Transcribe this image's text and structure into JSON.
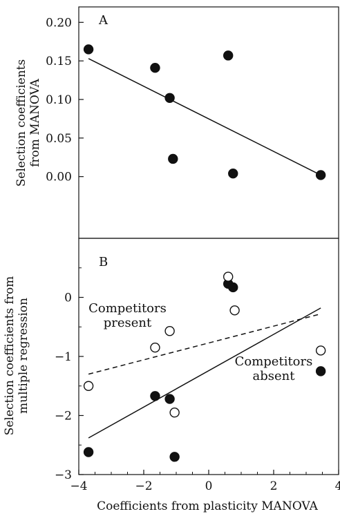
{
  "chart_data": [
    {
      "type": "scatter",
      "panel_label": "A",
      "ylabel_line1": "Selection coefficients",
      "ylabel_line2": "from MANOVA",
      "xlim": [
        -4,
        4
      ],
      "ylim": [
        -0.08,
        0.22
      ],
      "y_ticks": [
        0.0,
        0.05,
        0.1,
        0.15,
        0.2
      ],
      "y_tick_labels": [
        "0.00",
        "0.05",
        "0.10",
        "0.15",
        "0.20"
      ],
      "series": [
        {
          "marker": "filled-circle",
          "points": [
            {
              "x": -3.7,
              "y": 0.165
            },
            {
              "x": -1.65,
              "y": 0.141
            },
            {
              "x": -1.2,
              "y": 0.102
            },
            {
              "x": -1.1,
              "y": 0.023
            },
            {
              "x": 0.6,
              "y": 0.157
            },
            {
              "x": 0.75,
              "y": 0.004
            },
            {
              "x": 3.45,
              "y": 0.002
            }
          ]
        }
      ],
      "fit_lines": [
        {
          "style": "solid",
          "x": [
            -3.7,
            3.45
          ],
          "y": [
            0.153,
            0.002
          ]
        }
      ]
    },
    {
      "type": "scatter",
      "panel_label": "B",
      "ylabel_line1": "Selection coefficients from",
      "ylabel_line2": "multiple regression",
      "xlabel": "Coefficients from plasticity MANOVA",
      "xlim": [
        -4,
        4
      ],
      "ylim": [
        -3,
        1
      ],
      "x_ticks": [
        -4,
        -2,
        0,
        2,
        4
      ],
      "x_tick_labels": [
        "−4",
        "−2",
        "0",
        "2",
        "4"
      ],
      "y_ticks": [
        -3,
        -2,
        -1,
        0
      ],
      "y_tick_labels": [
        "−3",
        "−2",
        "−1",
        "0"
      ],
      "series": [
        {
          "marker": "filled-circle",
          "points": [
            {
              "x": -3.7,
              "y": -2.62
            },
            {
              "x": -1.65,
              "y": -1.67
            },
            {
              "x": -1.2,
              "y": -1.72
            },
            {
              "x": -1.05,
              "y": -2.7
            },
            {
              "x": 0.6,
              "y": 0.23
            },
            {
              "x": 0.75,
              "y": 0.17
            },
            {
              "x": 3.45,
              "y": -1.25
            }
          ]
        },
        {
          "marker": "open-circle",
          "points": [
            {
              "x": -3.7,
              "y": -1.5
            },
            {
              "x": -1.65,
              "y": -0.85
            },
            {
              "x": -1.2,
              "y": -0.57
            },
            {
              "x": -1.05,
              "y": -1.95
            },
            {
              "x": 0.6,
              "y": 0.35
            },
            {
              "x": 0.8,
              "y": -0.22
            },
            {
              "x": 3.45,
              "y": -0.9
            }
          ]
        }
      ],
      "fit_lines": [
        {
          "style": "solid",
          "x": [
            -3.7,
            3.45
          ],
          "y": [
            -2.38,
            -0.18
          ]
        },
        {
          "style": "dashed",
          "x": [
            -3.7,
            3.45
          ],
          "y": [
            -1.3,
            -0.28
          ]
        }
      ],
      "annotations": [
        {
          "line1": "Competitors",
          "line2": "present",
          "x": -2.5,
          "y": -0.25
        },
        {
          "line1": "Competitors",
          "line2": "absent",
          "x": 2.0,
          "y": -1.15
        }
      ]
    }
  ]
}
